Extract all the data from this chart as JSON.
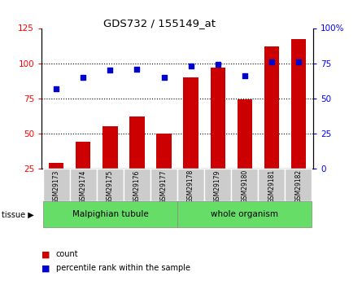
{
  "title": "GDS732 / 155149_at",
  "samples": [
    "GSM29173",
    "GSM29174",
    "GSM29175",
    "GSM29176",
    "GSM29177",
    "GSM29178",
    "GSM29179",
    "GSM29180",
    "GSM29181",
    "GSM29182"
  ],
  "counts": [
    29,
    44,
    55,
    62,
    50,
    90,
    97,
    74,
    112,
    117
  ],
  "percentiles": [
    57,
    65,
    70,
    71,
    65,
    73,
    74,
    66,
    76,
    76
  ],
  "bar_color": "#cc0000",
  "dot_color": "#0000cc",
  "left_ylim": [
    25,
    125
  ],
  "left_yticks": [
    25,
    50,
    75,
    100,
    125
  ],
  "right_ylim": [
    0,
    100
  ],
  "right_yticks": [
    0,
    25,
    50,
    75,
    100
  ],
  "right_yticklabels": [
    "0",
    "25",
    "50",
    "75",
    "100%"
  ],
  "hlines": [
    50,
    75,
    100
  ],
  "tissue_label": "tissue",
  "legend_bar_label": "count",
  "legend_dot_label": "percentile rank within the sample",
  "bg_color": "#ffffff",
  "plot_bg_color": "#ffffff",
  "tick_label_bg": "#cccccc",
  "group1_label": "Malpighian tubule",
  "group2_label": "whole organism",
  "group_color": "#66dd66"
}
